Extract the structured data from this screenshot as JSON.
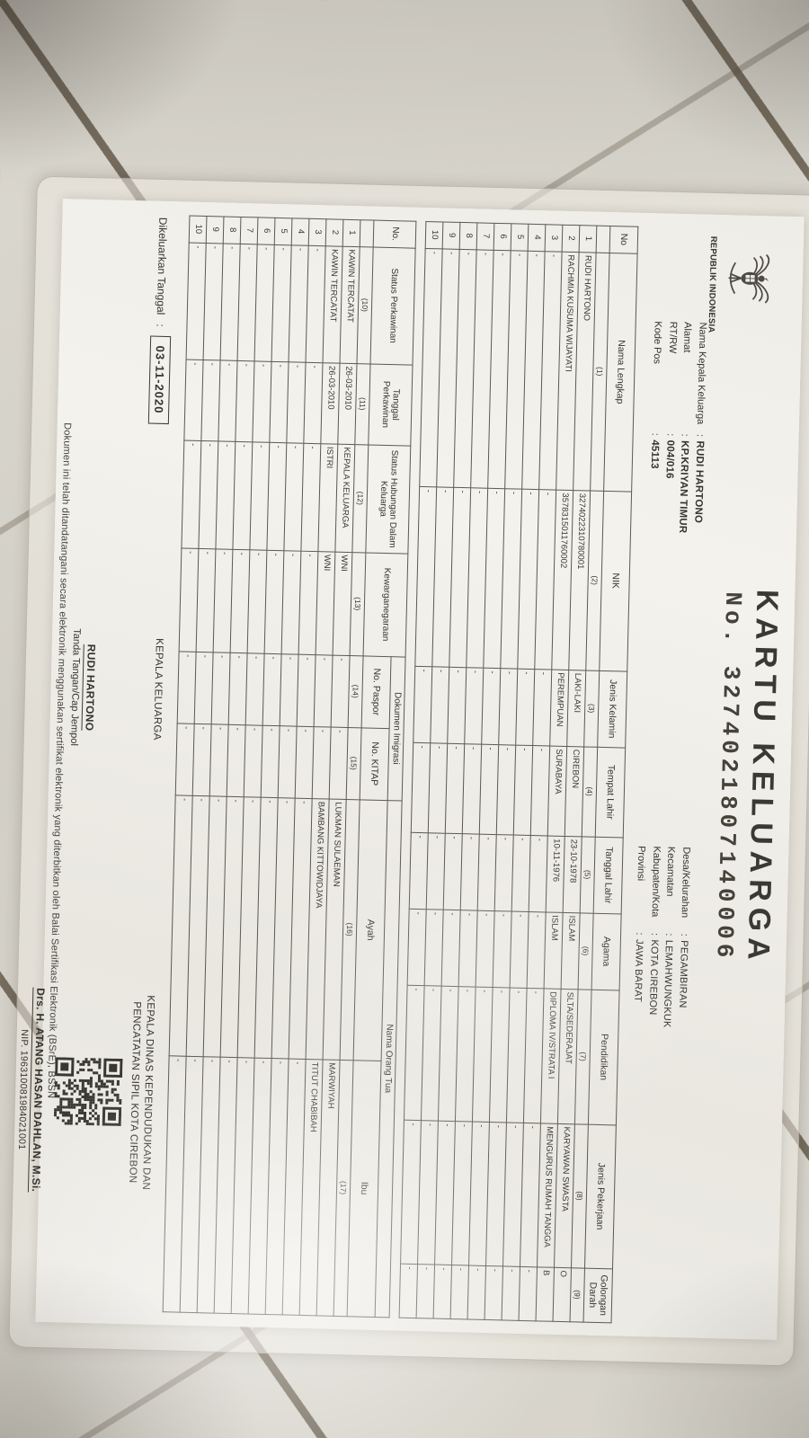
{
  "scene": {
    "floor_color": "#d9d6cd",
    "grout_color": "#6b6150",
    "paper_color": "#f1efe9",
    "ink_color": "#35332e"
  },
  "document": {
    "country": "REPUBLIK INDONESIA",
    "title": "KARTU KELUARGA",
    "number_label": "No.",
    "number": "3274021807140006",
    "head_left": [
      {
        "label": "Nama Kepala Keluarga",
        "value": "RUDI HARTONO"
      },
      {
        "label": "Alamat",
        "value": "KP.KRIYAN TIMUR"
      },
      {
        "label": "RT/RW",
        "value": "004/016"
      },
      {
        "label": "Kode Pos",
        "value": "45113"
      }
    ],
    "head_right": [
      {
        "label": "Desa/Kelurahan",
        "value": "PEGAMBIRAN"
      },
      {
        "label": "Kecamatan",
        "value": "LEMAHWUNGKUK"
      },
      {
        "label": "Kabupaten/Kota",
        "value": "KOTA CIREBON"
      },
      {
        "label": "Provinsi",
        "value": "JAWA BARAT"
      }
    ],
    "table1": {
      "headers": [
        "No",
        "Nama Lengkap",
        "NIK",
        "Jenis Kelamin",
        "Tempat Lahir",
        "Tanggal Lahir",
        "Agama",
        "Pendidikan",
        "Jenis Pekerjaan",
        "Golongan Darah"
      ],
      "nums": [
        "",
        "(1)",
        "(2)",
        "(3)",
        "(4)",
        "(5)",
        "(6)",
        "(7)",
        "(8)",
        "(9)"
      ],
      "rows": [
        [
          "1",
          "RUDI HARTONO",
          "3274022310780001",
          "LAKI-LAKI",
          "CIREBON",
          "23-10-1978",
          "ISLAM",
          "SLTA/SEDERAJAT",
          "KARYAWAN SWASTA",
          "O"
        ],
        [
          "2",
          "RACHMIA KUSUMA WIJAYATI",
          "3578315011760002",
          "PEREMPUAN",
          "SURABAYA",
          "10-11-1976",
          "ISLAM",
          "DIPLOMA IV/STRATA I",
          "MENGURUS RUMAH TANGGA",
          "B"
        ],
        [
          "3",
          "-",
          "-",
          "-",
          "-",
          "-",
          "-",
          "-",
          "-",
          "-"
        ],
        [
          "4",
          "-",
          "-",
          "-",
          "-",
          "-",
          "-",
          "-",
          "-",
          "-"
        ],
        [
          "5",
          "-",
          "-",
          "-",
          "-",
          "-",
          "-",
          "-",
          "-",
          "-"
        ],
        [
          "6",
          "-",
          "-",
          "-",
          "-",
          "-",
          "-",
          "-",
          "-",
          "-"
        ],
        [
          "7",
          "-",
          "-",
          "-",
          "-",
          "-",
          "-",
          "-",
          "-",
          "-"
        ],
        [
          "8",
          "-",
          "-",
          "-",
          "-",
          "-",
          "-",
          "-",
          "-",
          "-"
        ],
        [
          "9",
          "-",
          "-",
          "-",
          "-",
          "-",
          "-",
          "-",
          "-",
          "-"
        ],
        [
          "10",
          "-",
          "-",
          "-",
          "-",
          "-",
          "-",
          "-",
          "-",
          "-"
        ]
      ]
    },
    "table2": {
      "group_headers": {
        "dokumen_imigrasi": "Dokumen Imigrasi",
        "nama_orang_tua": "Nama Orang Tua"
      },
      "headers": [
        "No.",
        "Status Perkawinan",
        "Tanggal Perkawinan",
        "Status Hubungan Dalam Keluarga",
        "Kewarganegaraan",
        "No. Paspor",
        "No. KITAP",
        "Ayah",
        "Ibu"
      ],
      "nums": [
        "",
        "(10)",
        "(11)",
        "(12)",
        "(13)",
        "(14)",
        "(15)",
        "(16)",
        "(17)"
      ],
      "rows": [
        [
          "1",
          "KAWIN TERCATAT",
          "26-03-2010",
          "KEPALA KELUARGA",
          "WNI",
          "-",
          "-",
          "LUKMAN SULAEMAN",
          "MARWIYAH"
        ],
        [
          "2",
          "KAWIN TERCATAT",
          "26-03-2010",
          "ISTRI",
          "WNI",
          "-",
          "-",
          "BAMBANG KITTOWIDJAYA",
          "TITUT CHABIBAH"
        ],
        [
          "3",
          "-",
          "-",
          "-",
          "-",
          "-",
          "-",
          "-",
          "-"
        ],
        [
          "4",
          "-",
          "-",
          "-",
          "-",
          "-",
          "-",
          "-",
          "-"
        ],
        [
          "5",
          "-",
          "-",
          "-",
          "-",
          "-",
          "-",
          "-",
          "-"
        ],
        [
          "6",
          "-",
          "-",
          "-",
          "-",
          "-",
          "-",
          "-",
          "-"
        ],
        [
          "7",
          "-",
          "-",
          "-",
          "-",
          "-",
          "-",
          "-",
          "-"
        ],
        [
          "8",
          "-",
          "-",
          "-",
          "-",
          "-",
          "-",
          "-",
          "-"
        ],
        [
          "9",
          "-",
          "-",
          "-",
          "-",
          "-",
          "-",
          "-",
          "-"
        ],
        [
          "10",
          "-",
          "-",
          "-",
          "-",
          "-",
          "-",
          "-",
          "-"
        ]
      ]
    },
    "footer": {
      "issued_label": "Dikeluarkan Tanggal",
      "issued_colon": ":",
      "issued_date": "03-11-2020",
      "left_signature": {
        "title": "KEPALA KELUARGA",
        "name": "RUDI HARTONO",
        "caption": "Tanda Tangan/Cap Jempol"
      },
      "right_signature": {
        "title_line1": "KEPALA DINAS KEPENDUDUKAN DAN",
        "title_line2": "PENCATATAN SIPIL KOTA CIREBON",
        "name": "Drs. H. ATANG HASAN DAHLAN, M.Si.",
        "nip": "NIP. 196310081984021001"
      },
      "note": "Dokumen ini telah ditandatangani secara elektronik menggunakan sertifikat elektronik yang diterbitkan oleh Balai Sertifikasi Elektronik (BSrE), BSSN"
    }
  }
}
